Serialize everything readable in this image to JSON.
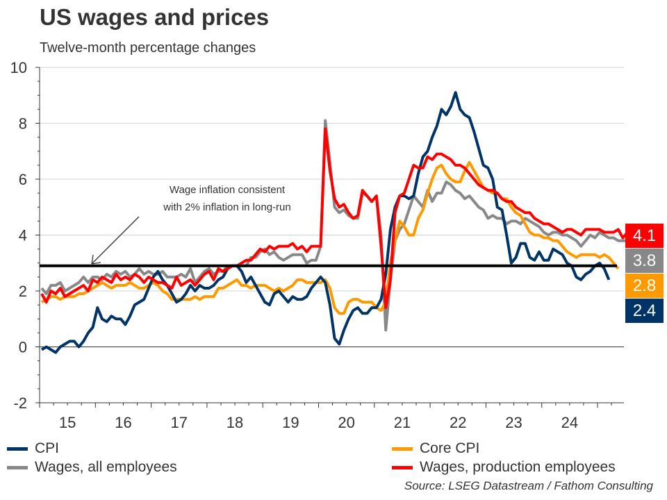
{
  "title": "US wages and prices",
  "subtitle": "Twelve-month percentage changes",
  "source": "Source: LSEG Datastream / Fathom Consulting",
  "annotation": {
    "line1": "Wage inflation consistent",
    "line2": "with 2% inflation in long-run"
  },
  "legend": [
    {
      "label": "CPI",
      "color": "#003366"
    },
    {
      "label": "Core CPI",
      "color": "#FF9900"
    },
    {
      "label": "Wages, all employees",
      "color": "#888888"
    },
    {
      "label": "Wages, production employees",
      "color": "#FF0000"
    }
  ],
  "last_values": [
    {
      "label": "4.1",
      "color": "#FF0000"
    },
    {
      "label": "3.8",
      "color": "#888888"
    },
    {
      "label": "2.8",
      "color": "#FF9900"
    },
    {
      "label": "2.4",
      "color": "#003366"
    }
  ],
  "chart_data": {
    "type": "line",
    "title": "US wages and prices",
    "subtitle": "Twelve-month percentage changes",
    "xlabel": "",
    "ylabel": "",
    "x_start": "2015-01",
    "frequency": "monthly",
    "xlim": [
      2015.0,
      2025.5
    ],
    "ylim": [
      -2,
      10
    ],
    "yticks": [
      -2,
      0,
      2,
      4,
      6,
      8,
      10
    ],
    "xtick_labels": [
      "15",
      "16",
      "17",
      "18",
      "19",
      "20",
      "21",
      "22",
      "23",
      "24"
    ],
    "grid": true,
    "reference_line": {
      "value": 2.9,
      "label": "Wage inflation consistent with 2% inflation in long-run"
    },
    "series": [
      {
        "name": "CPI",
        "color": "#003366",
        "values": [
          -0.1,
          0.0,
          -0.1,
          -0.2,
          0.0,
          0.1,
          0.2,
          0.2,
          0.0,
          0.2,
          0.5,
          0.7,
          1.4,
          1.0,
          0.9,
          1.1,
          1.0,
          1.0,
          0.8,
          1.1,
          1.5,
          1.6,
          1.7,
          2.1,
          2.5,
          2.7,
          2.4,
          2.2,
          1.9,
          1.6,
          1.7,
          1.9,
          2.2,
          2.0,
          2.2,
          2.1,
          2.1,
          2.2,
          2.4,
          2.5,
          2.8,
          2.9,
          2.9,
          2.7,
          2.3,
          2.5,
          2.2,
          1.9,
          1.6,
          1.5,
          1.9,
          2.0,
          1.8,
          1.6,
          1.8,
          1.7,
          1.7,
          1.8,
          2.1,
          2.3,
          2.5,
          2.3,
          1.5,
          0.3,
          0.1,
          0.6,
          1.0,
          1.3,
          1.4,
          1.2,
          1.2,
          1.4,
          1.4,
          1.7,
          2.6,
          4.2,
          5.0,
          5.4,
          5.4,
          5.3,
          5.4,
          6.2,
          6.8,
          7.0,
          7.5,
          7.9,
          8.5,
          8.3,
          8.6,
          9.1,
          8.5,
          8.3,
          8.2,
          7.7,
          7.1,
          6.5,
          6.4,
          6.0,
          5.0,
          4.9,
          4.0,
          3.0,
          3.2,
          3.7,
          3.7,
          3.2,
          3.1,
          3.4,
          3.1,
          3.1,
          3.5,
          3.4,
          3.3,
          3.0,
          2.9,
          2.5,
          2.4,
          2.6,
          2.7,
          2.9,
          3.0,
          2.8,
          2.4
        ]
      },
      {
        "name": "Core CPI",
        "color": "#FF9900",
        "values": [
          1.6,
          1.7,
          1.8,
          1.8,
          1.7,
          1.8,
          1.8,
          1.8,
          1.9,
          1.9,
          2.0,
          2.1,
          2.2,
          2.3,
          2.2,
          2.1,
          2.2,
          2.2,
          2.2,
          2.3,
          2.2,
          2.1,
          2.1,
          2.2,
          2.3,
          2.2,
          2.0,
          1.9,
          1.7,
          1.7,
          1.7,
          1.7,
          1.7,
          1.8,
          1.7,
          1.8,
          1.8,
          1.8,
          2.1,
          2.1,
          2.2,
          2.3,
          2.4,
          2.2,
          2.2,
          2.1,
          2.2,
          2.2,
          2.2,
          2.1,
          2.0,
          2.1,
          2.0,
          2.1,
          2.2,
          2.4,
          2.4,
          2.3,
          2.3,
          2.3,
          2.3,
          2.4,
          2.1,
          1.4,
          1.2,
          1.2,
          1.6,
          1.7,
          1.7,
          1.6,
          1.6,
          1.6,
          1.4,
          1.3,
          1.6,
          3.0,
          3.8,
          4.5,
          4.3,
          4.0,
          4.0,
          4.6,
          4.9,
          5.5,
          6.0,
          6.4,
          6.5,
          6.2,
          6.0,
          5.9,
          5.9,
          6.3,
          6.6,
          6.3,
          6.0,
          5.7,
          5.6,
          5.5,
          5.5,
          5.3,
          5.3,
          5.0,
          4.8,
          4.7,
          4.4,
          4.1,
          4.0,
          4.0,
          3.9,
          3.9,
          3.8,
          3.8,
          3.6,
          3.4,
          3.3,
          3.2,
          3.3,
          3.3,
          3.3,
          3.3,
          3.2,
          3.3,
          3.2,
          3.0,
          2.8
        ]
      },
      {
        "name": "Wages, all employees",
        "color": "#888888",
        "values": [
          2.1,
          1.9,
          2.2,
          2.2,
          2.3,
          2.0,
          2.1,
          2.2,
          2.3,
          2.5,
          2.3,
          2.5,
          2.5,
          2.4,
          2.6,
          2.5,
          2.7,
          2.6,
          2.7,
          2.5,
          2.6,
          2.8,
          2.6,
          2.7,
          2.6,
          2.6,
          2.7,
          2.5,
          2.5,
          2.5,
          2.6,
          2.5,
          2.8,
          2.3,
          2.5,
          2.7,
          2.8,
          2.6,
          2.7,
          2.7,
          2.9,
          2.9,
          2.9,
          2.9,
          2.9,
          3.2,
          3.2,
          3.4,
          3.5,
          3.3,
          3.4,
          3.2,
          3.1,
          3.2,
          3.3,
          3.3,
          3.3,
          3.0,
          3.1,
          3.1,
          3.6,
          8.1,
          6.6,
          5.0,
          4.8,
          4.9,
          4.7,
          4.6,
          4.6,
          5.5,
          5.4,
          5.2,
          5.4,
          4.0,
          0.6,
          2.4,
          3.8,
          4.2,
          4.4,
          4.9,
          5.4,
          5.2,
          5.0,
          5.6,
          5.2,
          5.5,
          5.5,
          5.9,
          5.8,
          5.6,
          5.5,
          5.3,
          5.4,
          5.2,
          5.0,
          4.9,
          4.6,
          4.7,
          4.6,
          4.6,
          4.4,
          4.5,
          4.5,
          4.4,
          4.6,
          4.5,
          4.4,
          4.3,
          4.1,
          4.0,
          4.1,
          4.1,
          4.0,
          4.0,
          3.9,
          3.8,
          3.6,
          3.8,
          4.0,
          3.9,
          4.1,
          4.0,
          3.9,
          3.9,
          3.8,
          3.8,
          3.8
        ]
      },
      {
        "name": "Wages, production employees",
        "color": "#FF0000",
        "values": [
          1.9,
          1.6,
          2.0,
          1.9,
          2.1,
          1.8,
          1.9,
          2.0,
          2.1,
          2.2,
          2.0,
          2.4,
          2.3,
          2.5,
          2.4,
          2.3,
          2.6,
          2.4,
          2.5,
          2.4,
          2.6,
          2.5,
          2.3,
          2.5,
          2.4,
          2.3,
          2.3,
          2.2,
          2.1,
          2.5,
          2.2,
          2.3,
          2.4,
          2.2,
          2.4,
          2.6,
          2.7,
          2.4,
          2.8,
          2.7,
          2.8,
          2.9,
          2.9,
          3.0,
          3.1,
          3.1,
          3.3,
          3.5,
          3.4,
          3.6,
          3.5,
          3.6,
          3.6,
          3.6,
          3.7,
          3.5,
          3.6,
          3.4,
          3.6,
          3.6,
          3.6,
          7.8,
          6.3,
          5.3,
          5.0,
          5.1,
          4.8,
          4.6,
          4.7,
          5.6,
          5.4,
          5.2,
          5.4,
          3.6,
          1.4,
          2.4,
          4.8,
          5.4,
          5.5,
          6.0,
          6.5,
          6.4,
          6.4,
          6.8,
          6.7,
          6.9,
          6.9,
          6.8,
          6.7,
          6.5,
          6.5,
          6.4,
          6.2,
          6.0,
          5.8,
          5.7,
          5.6,
          5.6,
          5.5,
          5.3,
          5.2,
          5.2,
          5.0,
          4.9,
          4.8,
          4.8,
          4.6,
          4.5,
          4.4,
          4.4,
          4.3,
          4.2,
          4.1,
          4.2,
          4.2,
          4.1,
          4.0,
          4.2,
          4.2,
          4.2,
          4.2,
          4.1,
          4.1,
          4.1,
          4.2,
          3.9,
          4.1
        ]
      }
    ]
  }
}
